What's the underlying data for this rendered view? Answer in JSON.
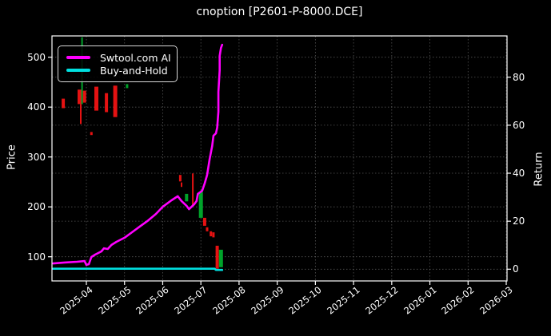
{
  "title": "cnoption [P2601-P-8000.DCE]",
  "colors": {
    "background": "#000000",
    "foreground": "#ffffff",
    "grid": "#9a9a9a",
    "ai_line": "#ff00ff",
    "bh_line": "#00e0e0",
    "candle_up": "#00a32a",
    "candle_down": "#e51212"
  },
  "legend": {
    "items": [
      {
        "label": "Swtool.com AI",
        "color": "#ff00ff"
      },
      {
        "label": "Buy-and-Hold",
        "color": "#00e0e0"
      }
    ]
  },
  "axes": {
    "left_label": "Price",
    "right_label": "Return"
  },
  "chart_data": {
    "type": "line",
    "overlay": "candlestick",
    "title": "cnoption [P2601-P-8000.DCE]",
    "xlabel": "",
    "ylabel_left": "Price",
    "ylabel_right": "Return",
    "x_tick_labels": [
      "2025-04",
      "2025-05",
      "2025-06",
      "2025-07",
      "2025-08",
      "2025-09",
      "2025-10",
      "2025-11",
      "2025-12",
      "2026-01",
      "2026-02",
      "2026-03"
    ],
    "price_ticks": [
      100,
      200,
      300,
      400,
      500
    ],
    "return_ticks": [
      0,
      20,
      40,
      60,
      80
    ],
    "price_range": [
      51,
      543
    ],
    "return_range": [
      -4.9,
      97.2
    ],
    "x_range": [
      "2025-03-04",
      "2026-03-01"
    ],
    "grid": "dotted gray at every price and return tick and every month",
    "legend_position": "upper left",
    "series": [
      {
        "name": "Swtool.com AI",
        "axis": "return",
        "color": "#ff00ff",
        "points": [
          [
            "2025-03-05",
            2.4
          ],
          [
            "2025-03-14",
            2.8
          ],
          [
            "2025-03-24",
            3.1
          ],
          [
            "2025-03-30",
            3.4
          ],
          [
            "2025-04-01",
            1.8
          ],
          [
            "2025-04-03",
            2.1
          ],
          [
            "2025-04-05",
            5.1
          ],
          [
            "2025-04-08",
            6.1
          ],
          [
            "2025-04-13",
            7.4
          ],
          [
            "2025-04-15",
            8.7
          ],
          [
            "2025-04-18",
            8.4
          ],
          [
            "2025-04-21",
            10.1
          ],
          [
            "2025-04-25",
            11.4
          ],
          [
            "2025-05-01",
            13.1
          ],
          [
            "2025-05-07",
            15.4
          ],
          [
            "2025-05-13",
            17.7
          ],
          [
            "2025-05-19",
            20.0
          ],
          [
            "2025-05-26",
            23.0
          ],
          [
            "2025-06-01",
            26.0
          ],
          [
            "2025-06-08",
            28.7
          ],
          [
            "2025-06-13",
            30.4
          ],
          [
            "2025-06-16",
            28.4
          ],
          [
            "2025-06-20",
            26.4
          ],
          [
            "2025-06-22",
            25.0
          ],
          [
            "2025-06-26",
            27.0
          ],
          [
            "2025-06-28",
            28.4
          ],
          [
            "2025-06-29",
            31.4
          ],
          [
            "2025-07-02",
            32.7
          ],
          [
            "2025-07-04",
            35.7
          ],
          [
            "2025-07-06",
            39.3
          ],
          [
            "2025-07-08",
            46.0
          ],
          [
            "2025-07-10",
            51.3
          ],
          [
            "2025-07-11",
            55.6
          ],
          [
            "2025-07-13",
            56.6
          ],
          [
            "2025-07-14",
            59.0
          ],
          [
            "2025-07-15",
            65.6
          ],
          [
            "2025-07-15",
            73.9
          ],
          [
            "2025-07-16",
            82.9
          ],
          [
            "2025-07-16",
            88.9
          ],
          [
            "2025-07-17",
            92.2
          ],
          [
            "2025-07-18",
            93.5
          ]
        ]
      },
      {
        "name": "Buy-and-Hold",
        "axis": "return",
        "color": "#00e0e0",
        "points": [
          [
            "2025-03-05",
            0.2
          ],
          [
            "2025-07-12",
            0.2
          ],
          [
            "2025-07-13",
            -0.3
          ],
          [
            "2025-07-18",
            -0.3
          ]
        ]
      }
    ],
    "candles": [
      {
        "date": "2025-03-13",
        "low": 398,
        "high": 417,
        "dir": "down",
        "w": 4
      },
      {
        "date": "2025-03-26",
        "low": 406,
        "high": 435,
        "dir": "down",
        "w": 5
      },
      {
        "date": "2025-03-27",
        "low": 366,
        "high": 406,
        "dir": "down",
        "w": 2
      },
      {
        "date": "2025-03-28",
        "low": 406,
        "high": 540,
        "dir": "up",
        "w": 2
      },
      {
        "date": "2025-03-30",
        "low": 409,
        "high": 433,
        "dir": "down",
        "w": 4
      },
      {
        "date": "2025-04-05",
        "low": 344,
        "high": 350,
        "dir": "down",
        "w": 3
      },
      {
        "date": "2025-04-09",
        "low": 393,
        "high": 441,
        "dir": "down",
        "w": 5
      },
      {
        "date": "2025-04-17",
        "low": 390,
        "high": 428,
        "dir": "down",
        "w": 4
      },
      {
        "date": "2025-04-24",
        "low": 380,
        "high": 443,
        "dir": "down",
        "w": 5
      },
      {
        "date": "2025-05-03",
        "low": 438,
        "high": 446,
        "dir": "up",
        "w": 3
      },
      {
        "date": "2025-06-15",
        "low": 251,
        "high": 264,
        "dir": "down",
        "w": 3
      },
      {
        "date": "2025-06-16",
        "low": 240,
        "high": 249,
        "dir": "down",
        "w": 2
      },
      {
        "date": "2025-06-20",
        "low": 211,
        "high": 226,
        "dir": "up",
        "w": 4
      },
      {
        "date": "2025-06-25",
        "low": 203,
        "high": 267,
        "dir": "down",
        "w": 2
      },
      {
        "date": "2025-07-01",
        "low": 178,
        "high": 230,
        "dir": "up",
        "w": 5
      },
      {
        "date": "2025-07-04",
        "low": 162,
        "high": 178,
        "dir": "down",
        "w": 4
      },
      {
        "date": "2025-07-06",
        "low": 151,
        "high": 159,
        "dir": "down",
        "w": 3
      },
      {
        "date": "2025-07-09",
        "low": 141,
        "high": 151,
        "dir": "down",
        "w": 3
      },
      {
        "date": "2025-07-11",
        "low": 139,
        "high": 149,
        "dir": "down",
        "w": 3
      },
      {
        "date": "2025-07-14",
        "low": 76,
        "high": 122,
        "dir": "down",
        "w": 4
      },
      {
        "date": "2025-07-17",
        "low": 79,
        "high": 114,
        "dir": "up",
        "w": 5
      }
    ]
  }
}
